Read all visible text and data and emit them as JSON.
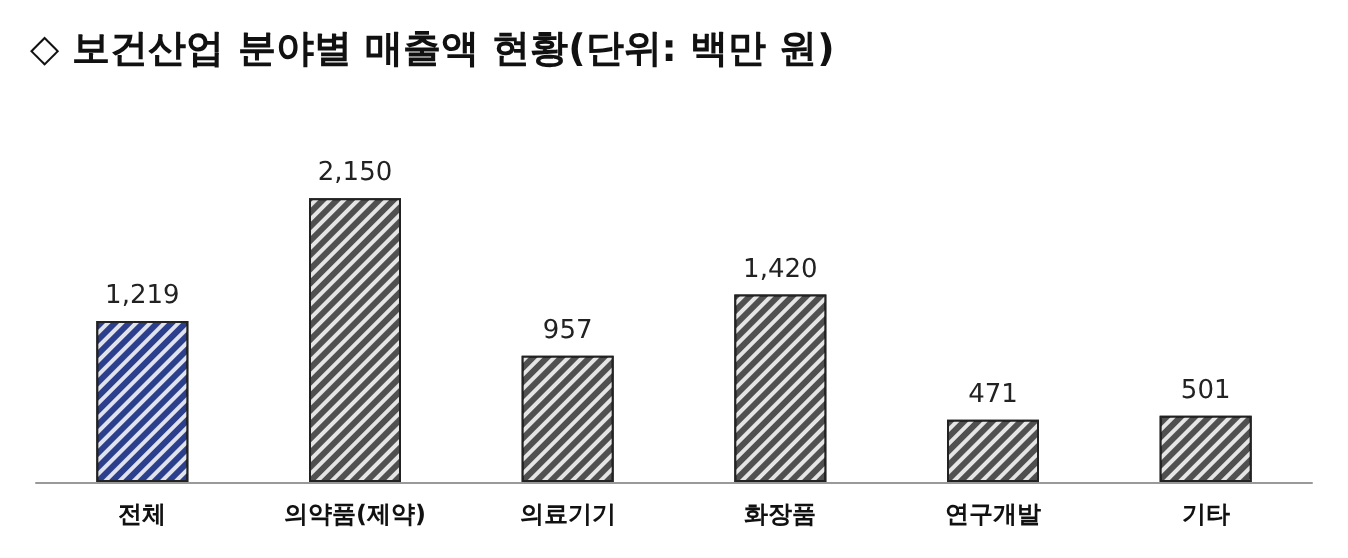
{
  "chart_data": {
    "type": "bar",
    "title": "◇ 보건산업 분야별 매출액 현황(단위: 백만 원)",
    "categories": [
      "전체",
      "의약품(제약)",
      "의료기기",
      "화장품",
      "연구개발",
      "기타"
    ],
    "values": [
      1219,
      2150,
      957,
      1420,
      471,
      501
    ],
    "colors": [
      "#2c3f8c",
      "#505050",
      "#505050",
      "#505050",
      "#505050",
      "#505050"
    ],
    "value_labels": [
      "1,219",
      "2,150",
      "957",
      "1,420",
      "471",
      "501"
    ],
    "grid": false
  }
}
